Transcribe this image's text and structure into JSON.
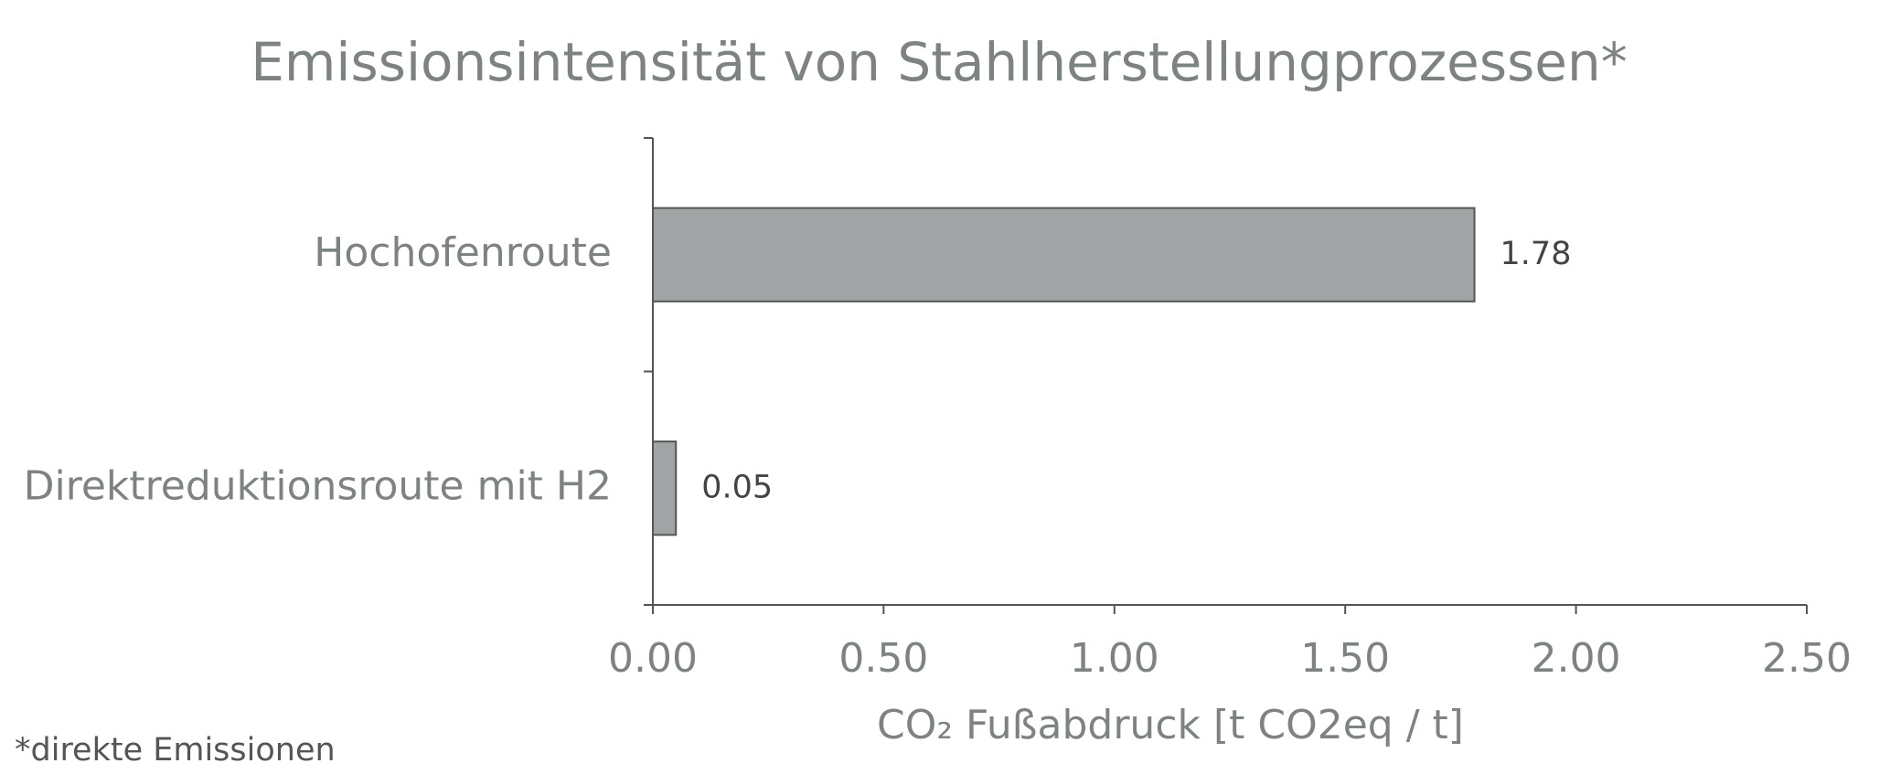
{
  "chart_data": {
    "type": "bar",
    "orientation": "horizontal",
    "title": "Emissionsintensität von Stahlherstellungprozessen*",
    "categories": [
      "Hochofenroute",
      "Direktreduktionsroute mit H2"
    ],
    "values": [
      1.78,
      0.05
    ],
    "color": "#a0a4a5",
    "xlim": [
      0,
      2.5
    ],
    "xticks": [
      {
        "value": 0,
        "label": "0.00"
      },
      {
        "value": 0.5,
        "label": "0.50"
      },
      {
        "value": 1,
        "label": "1.00"
      },
      {
        "value": 1.5,
        "label": "1.50"
      },
      {
        "value": 2,
        "label": "2.00"
      },
      {
        "value": 2.5,
        "label": "2.50"
      }
    ],
    "xlabel": "CO₂ Fußabdruck [t CO2eq / t]",
    "footnote": "*direkte Emissionen",
    "grid": false
  }
}
